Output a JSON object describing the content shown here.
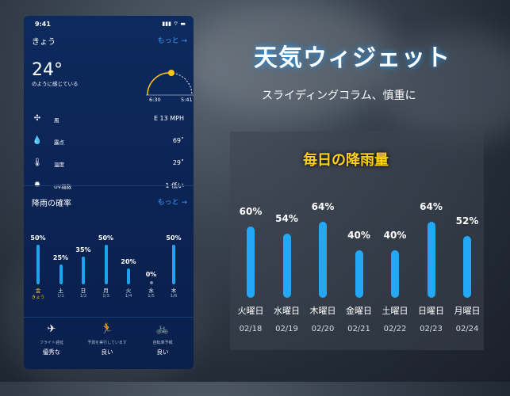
{
  "phone": {
    "time": "9:41",
    "status_icons": "▮▮▮ ⌔ ▬",
    "today": {
      "label": "きょう",
      "more": "もっと →"
    },
    "temp": "24°",
    "feels": "のように感じている",
    "sunrise": "6:30",
    "sunset": "5:41",
    "details": [
      {
        "icon": "wind-icon",
        "glyph": "✣",
        "label": "風",
        "value": "E 13 MPH"
      },
      {
        "icon": "dewpoint-icon",
        "glyph": "💧",
        "label": "露点",
        "value": "69˚"
      },
      {
        "icon": "thermometer-icon",
        "glyph": "🌡",
        "label": "温度",
        "value": "29˚"
      },
      {
        "icon": "uv-icon",
        "glyph": "✹",
        "label": "UV指数",
        "value": "1 低い"
      }
    ],
    "precip": {
      "label": "降雨の確率",
      "more": "もっと →",
      "days": [
        {
          "pct": "50%",
          "value": 50,
          "day": "金",
          "date": "きょう",
          "highlight": true
        },
        {
          "pct": "25%",
          "value": 25,
          "day": "土",
          "date": "1/1"
        },
        {
          "pct": "35%",
          "value": 35,
          "day": "日",
          "date": "1/2"
        },
        {
          "pct": "50%",
          "value": 50,
          "day": "月",
          "date": "1/3"
        },
        {
          "pct": "20%",
          "value": 20,
          "day": "火",
          "date": "1/4"
        },
        {
          "pct": "0%",
          "value": 0,
          "day": "水",
          "date": "1/5"
        },
        {
          "pct": "50%",
          "value": 50,
          "day": "木",
          "date": "1/6"
        }
      ]
    },
    "activities": [
      {
        "icon": "airplane-icon",
        "glyph": "✈",
        "label": "フライト遅延",
        "value": "優秀な"
      },
      {
        "icon": "running-icon",
        "glyph": "🏃",
        "label": "予測を実行しています",
        "value": "良い"
      },
      {
        "icon": "bicycle-icon",
        "glyph": "🚲",
        "label": "自転車予報",
        "value": "良い"
      }
    ]
  },
  "headline": "天気ウィジェット",
  "subheadline": "スライディングコラム、慎重に",
  "chart_data": {
    "type": "bar",
    "title": "毎日の降雨量",
    "categories": [
      "火曜日",
      "水曜日",
      "木曜日",
      "金曜日",
      "土曜日",
      "日曜日",
      "月曜日"
    ],
    "dates": [
      "02/18",
      "02/19",
      "02/20",
      "02/21",
      "02/22",
      "02/23",
      "02/24"
    ],
    "values": [
      60,
      54,
      64,
      40,
      40,
      64,
      52
    ],
    "labels": [
      "60%",
      "54%",
      "64%",
      "40%",
      "40%",
      "64%",
      "52%"
    ],
    "ylim": [
      0,
      100
    ],
    "bar_color": "#23a8f5"
  }
}
